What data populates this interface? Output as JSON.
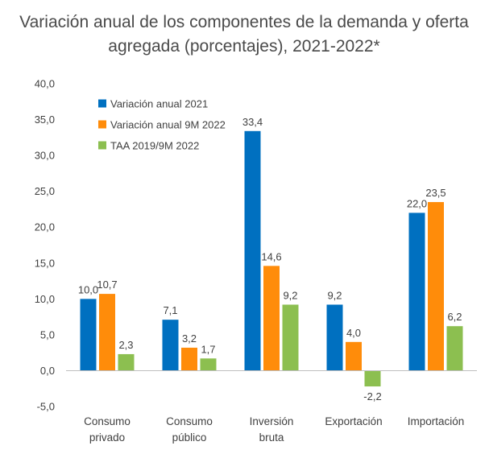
{
  "chart_data": {
    "type": "bar",
    "title_line1": "Variación anual de los componentes de la demanda y oferta",
    "title_line2": "agregada (porcentajes), 2021-2022*",
    "categories": [
      [
        "Consumo",
        "privado"
      ],
      [
        "Consumo",
        "público"
      ],
      [
        "Inversión",
        "bruta"
      ],
      [
        "Exportación"
      ],
      [
        "Importación"
      ]
    ],
    "series": [
      {
        "name": "Variación anual 2021",
        "color": "#0070c0",
        "values": [
          10.0,
          7.1,
          33.4,
          9.2,
          22.0
        ],
        "labels": [
          "10,0",
          "7,1",
          "33,4",
          "9,2",
          "22,0"
        ]
      },
      {
        "name": "Variación anual 9M 2022",
        "color": "#ff8c0a",
        "values": [
          10.7,
          3.2,
          14.6,
          4.0,
          23.5
        ],
        "labels": [
          "10,7",
          "3,2",
          "14,6",
          "4,0",
          "23,5"
        ]
      },
      {
        "name": "TAA 2019/9M 2022",
        "color": "#8cbf50",
        "values": [
          2.3,
          1.7,
          9.2,
          -2.2,
          6.2
        ],
        "labels": [
          "2,3",
          "1,7",
          "9,2",
          "-2,2",
          "6,2"
        ]
      }
    ],
    "ylim": [
      -5,
      40
    ],
    "yticks": [
      -5,
      0,
      5,
      10,
      15,
      20,
      25,
      30,
      35,
      40
    ],
    "ytick_labels": [
      "-5,0",
      "0,0",
      "5,0",
      "10,0",
      "15,0",
      "20,0",
      "25,0",
      "30,0",
      "35,0",
      "40,0"
    ],
    "grid": false,
    "legend_position": "top-left"
  }
}
